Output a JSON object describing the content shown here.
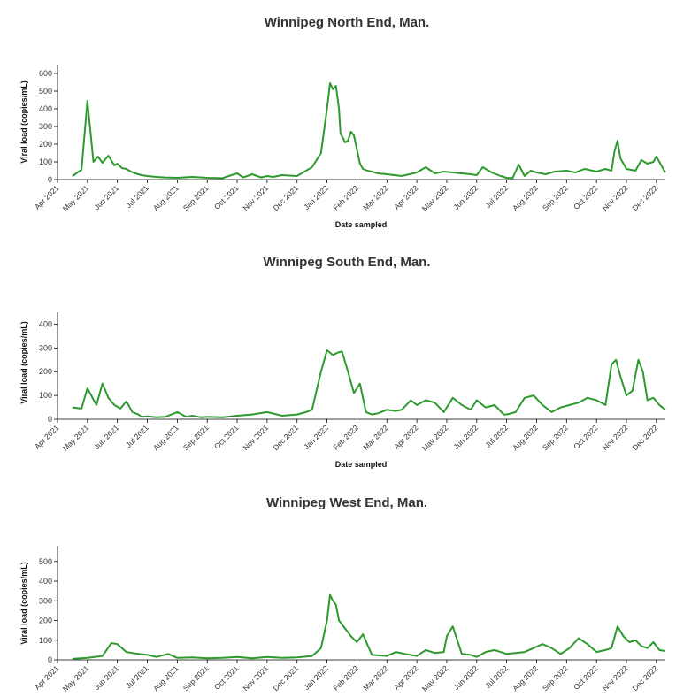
{
  "colors": {
    "line": "#2e9a2e",
    "axis": "#000000",
    "text": "#333333"
  },
  "chart_data": [
    {
      "type": "line",
      "title": "Winnipeg North End, Man.",
      "ylabel": "Viral load (copies/mL)",
      "xlabel": "Date sampled",
      "ylim": [
        0,
        650
      ],
      "yticks": [
        0,
        100,
        200,
        300,
        400,
        500,
        600
      ],
      "xlim": [
        0,
        20.3
      ],
      "grid": false,
      "legend": "none",
      "x_ticks": [
        "Apr 2021",
        "May 2021",
        "Jun 2021",
        "Jul 2021",
        "Aug 2021",
        "Sep 2021",
        "Oct 2021",
        "Nov 2021",
        "Dec 2021",
        "Jan 2022",
        "Feb 2022",
        "Mar 2022",
        "Apr 2022",
        "May 2022",
        "Jun 2022",
        "Jul 2022",
        "Aug 2022",
        "Sep 2022",
        "Oct 2022",
        "Nov 2022",
        "Dec 2022"
      ],
      "series": [
        {
          "x": [
            0.5,
            0.8,
            1.0,
            1.2,
            1.35,
            1.5,
            1.7,
            1.9,
            2.0,
            2.15,
            2.3,
            2.45,
            2.6,
            2.8,
            3.0,
            3.3,
            3.6,
            4.0,
            4.5,
            5.0,
            5.5,
            6.0,
            6.2,
            6.5,
            6.8,
            7.0,
            7.2,
            7.5,
            8.0,
            8.5,
            8.8,
            9.0,
            9.1,
            9.2,
            9.3,
            9.4,
            9.45,
            9.55,
            9.6,
            9.7,
            9.8,
            9.9,
            10.0,
            10.1,
            10.2,
            10.35,
            10.5,
            10.7,
            11.0,
            11.5,
            12.0,
            12.3,
            12.6,
            12.9,
            13.2,
            13.5,
            13.8,
            14.0,
            14.2,
            14.5,
            14.8,
            15.0,
            15.2,
            15.4,
            15.6,
            15.8,
            16.0,
            16.3,
            16.6,
            17.0,
            17.3,
            17.6,
            18.0,
            18.3,
            18.5,
            18.6,
            18.7,
            18.8,
            19.0,
            19.3,
            19.5,
            19.7,
            19.9,
            20.0,
            20.3
          ],
          "y": [
            20,
            55,
            445,
            100,
            130,
            95,
            135,
            80,
            90,
            65,
            60,
            45,
            35,
            25,
            20,
            15,
            12,
            10,
            15,
            10,
            8,
            35,
            12,
            30,
            12,
            20,
            15,
            25,
            20,
            70,
            150,
            400,
            545,
            510,
            530,
            400,
            260,
            230,
            210,
            220,
            270,
            250,
            170,
            90,
            60,
            50,
            45,
            35,
            30,
            20,
            40,
            70,
            35,
            45,
            40,
            35,
            30,
            25,
            70,
            40,
            20,
            10,
            8,
            85,
            20,
            50,
            40,
            30,
            45,
            50,
            40,
            60,
            45,
            60,
            50,
            160,
            220,
            120,
            60,
            50,
            110,
            90,
            100,
            130,
            40
          ]
        }
      ]
    },
    {
      "type": "line",
      "title": "Winnipeg South End, Man.",
      "ylabel": "Viral load (copies/mL)",
      "xlabel": "Date sampled",
      "ylim": [
        0,
        450
      ],
      "yticks": [
        0,
        100,
        200,
        300,
        400
      ],
      "xlim": [
        0,
        20.3
      ],
      "grid": false,
      "legend": "none",
      "x_ticks": [
        "Apr 2021",
        "May 2021",
        "Jun 2021",
        "Jul 2021",
        "Aug 2021",
        "Sep 2021",
        "Oct 2021",
        "Nov 2021",
        "Dec 2021",
        "Jan 2022",
        "Feb 2022",
        "Mar 2022",
        "Apr 2022",
        "May 2022",
        "Jun 2022",
        "Jul 2022",
        "Aug 2022",
        "Sep 2022",
        "Oct 2022",
        "Nov 2022",
        "Dec 2022"
      ],
      "series": [
        {
          "x": [
            0.5,
            0.8,
            1.0,
            1.3,
            1.5,
            1.7,
            1.9,
            2.1,
            2.3,
            2.5,
            2.7,
            2.8,
            3.0,
            3.3,
            3.6,
            4.0,
            4.3,
            4.5,
            4.8,
            5.0,
            5.5,
            6.0,
            6.5,
            7.0,
            7.5,
            8.0,
            8.3,
            8.5,
            8.8,
            9.0,
            9.2,
            9.35,
            9.5,
            9.7,
            9.9,
            10.1,
            10.3,
            10.5,
            10.7,
            11.0,
            11.3,
            11.5,
            11.8,
            12.0,
            12.3,
            12.6,
            12.9,
            13.2,
            13.5,
            13.8,
            14.0,
            14.3,
            14.6,
            14.9,
            15.0,
            15.3,
            15.6,
            15.9,
            16.2,
            16.5,
            16.8,
            17.1,
            17.4,
            17.7,
            18.0,
            18.3,
            18.5,
            18.65,
            18.8,
            19.0,
            19.2,
            19.4,
            19.55,
            19.7,
            19.9,
            20.1,
            20.3
          ],
          "y": [
            50,
            45,
            130,
            60,
            150,
            90,
            60,
            45,
            75,
            30,
            20,
            10,
            12,
            8,
            10,
            30,
            10,
            15,
            8,
            10,
            8,
            15,
            20,
            30,
            15,
            20,
            30,
            40,
            200,
            290,
            270,
            280,
            285,
            200,
            110,
            150,
            30,
            20,
            25,
            40,
            35,
            40,
            80,
            60,
            80,
            70,
            30,
            90,
            60,
            40,
            80,
            50,
            60,
            20,
            20,
            30,
            90,
            100,
            60,
            30,
            50,
            60,
            70,
            90,
            80,
            60,
            230,
            250,
            180,
            100,
            120,
            250,
            200,
            80,
            90,
            60,
            40
          ]
        }
      ]
    },
    {
      "type": "line",
      "title": "Winnipeg West End, Man.",
      "ylabel": "Viral load (copies/mL)",
      "xlabel": "",
      "ylim": [
        0,
        580
      ],
      "yticks": [
        0,
        100,
        200,
        300,
        400,
        500
      ],
      "xlim": [
        0,
        20.3
      ],
      "grid": false,
      "legend": "none",
      "x_ticks": [
        "Apr 2021",
        "May 2021",
        "Jun 2021",
        "Jul 2021",
        "Aug 2021",
        "Sep 2021",
        "Oct 2021",
        "Nov 2021",
        "Dec 2021",
        "Jan 2022",
        "Feb 2022",
        "Mar 2022",
        "Apr 2022",
        "May 2022",
        "Jun 2022",
        "Jul 2022",
        "Aug 2022",
        "Sep 2022",
        "Oct 2022",
        "Nov 2022",
        "Dec 2022"
      ],
      "series": [
        {
          "x": [
            0.5,
            1.0,
            1.5,
            1.8,
            2.0,
            2.3,
            2.7,
            3.0,
            3.3,
            3.7,
            4.0,
            4.5,
            5.0,
            5.5,
            6.0,
            6.5,
            7.0,
            7.5,
            8.0,
            8.5,
            8.8,
            9.0,
            9.1,
            9.2,
            9.3,
            9.4,
            9.5,
            9.6,
            9.8,
            10.0,
            10.2,
            10.5,
            11.0,
            11.3,
            11.6,
            12.0,
            12.3,
            12.6,
            12.9,
            13.0,
            13.2,
            13.5,
            13.8,
            14.0,
            14.3,
            14.6,
            15.0,
            15.3,
            15.6,
            15.9,
            16.2,
            16.5,
            16.8,
            17.1,
            17.4,
            17.7,
            18.0,
            18.3,
            18.5,
            18.7,
            18.9,
            19.1,
            19.3,
            19.5,
            19.7,
            19.9,
            20.1,
            20.3
          ],
          "y": [
            5,
            10,
            20,
            85,
            80,
            40,
            30,
            25,
            15,
            30,
            10,
            12,
            8,
            10,
            15,
            8,
            15,
            10,
            12,
            20,
            60,
            200,
            330,
            300,
            280,
            200,
            180,
            160,
            120,
            90,
            130,
            25,
            20,
            40,
            30,
            20,
            50,
            35,
            40,
            120,
            170,
            30,
            25,
            15,
            40,
            50,
            30,
            35,
            40,
            60,
            80,
            60,
            30,
            60,
            110,
            80,
            40,
            50,
            60,
            170,
            120,
            90,
            100,
            70,
            60,
            90,
            50,
            45
          ]
        }
      ]
    }
  ]
}
